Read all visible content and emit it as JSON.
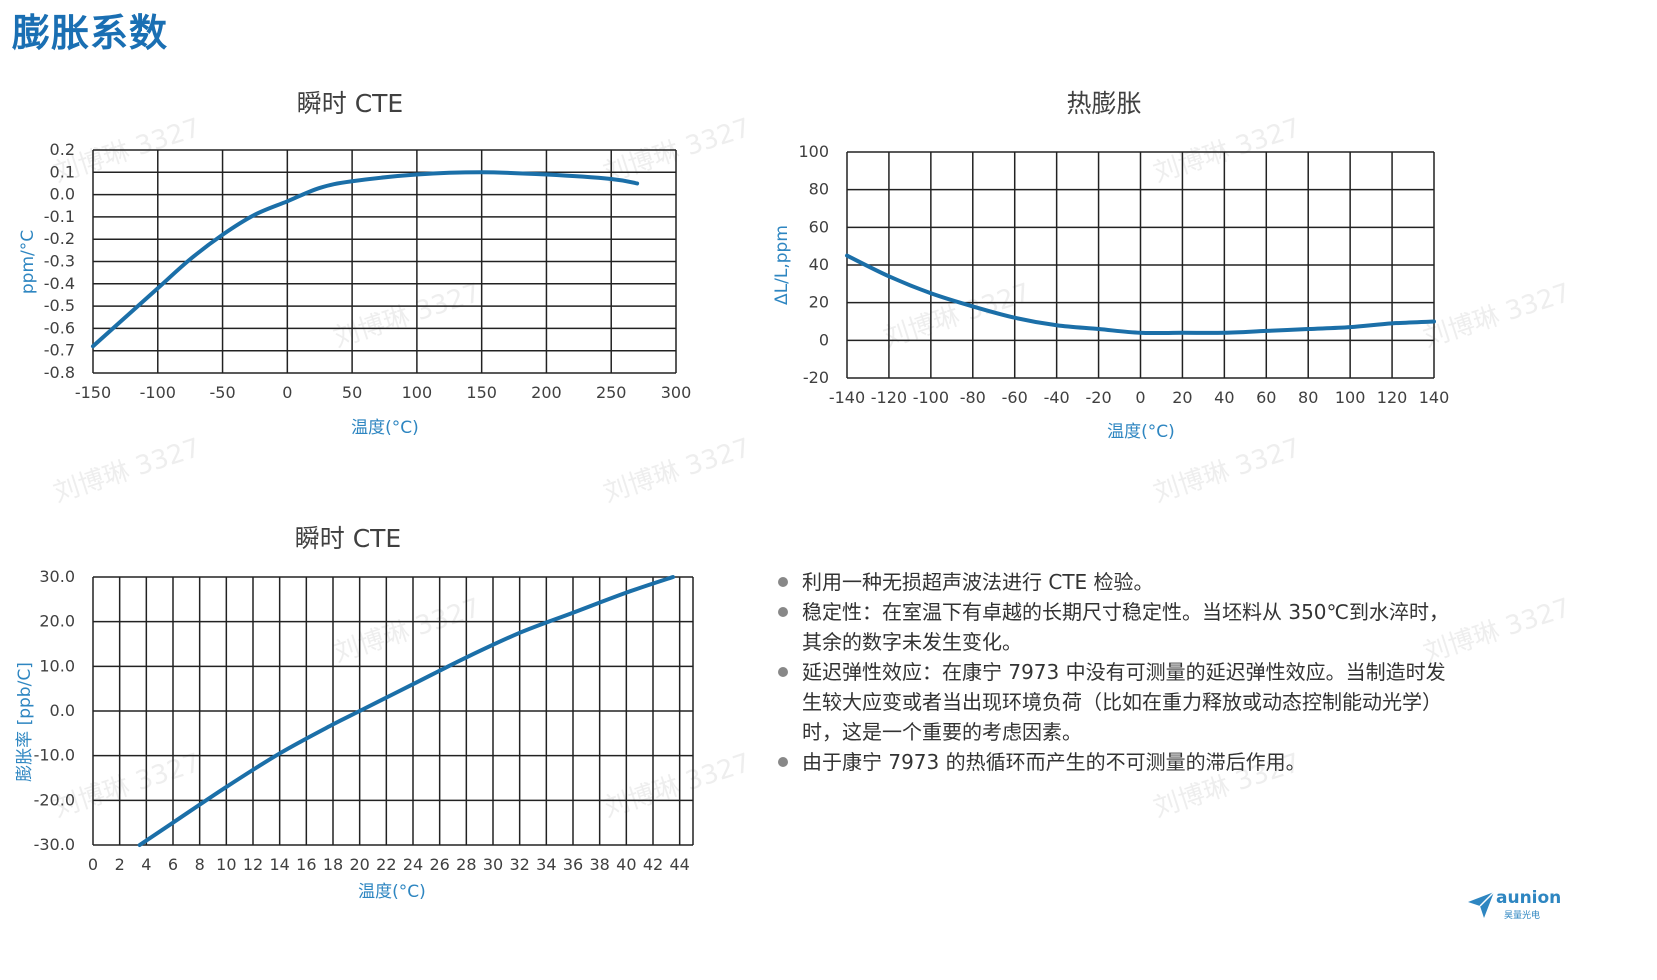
{
  "page_title": "膨胀系数",
  "watermark_text": "刘博琳 3327",
  "bullets": [
    "利用一种无损超声波法进行 CTE 检验。",
    "稳定性：在室温下有卓越的长期尺寸稳定性。当坯料从 350℃到水淬时，其余的数字未发生变化。",
    "延迟弹性效应：在康宁 7973 中没有可测量的延迟弹性效应。当制造时发生较大应变或者当出现环境负荷（比如在重力释放或动态控制能动光学）时，这是一个重要的考虑因素。",
    "由于康宁 7973 的热循环而产生的不可测量的滞后作用。"
  ],
  "logo": {
    "name": "aunion",
    "sub": "昊量光电"
  },
  "chart_data": [
    {
      "type": "line",
      "title": "瞬时 CTE",
      "xlabel": "温度(°C)",
      "ylabel": "ppm/°C",
      "xlim": [
        -150,
        300
      ],
      "ylim": [
        -0.8,
        0.2
      ],
      "x_ticks": [
        "-150",
        "-100",
        "-50",
        "0",
        "50",
        "100",
        "150",
        "200",
        "250",
        "300"
      ],
      "y_ticks": [
        "0.2",
        "0.1",
        "0.0",
        "-0.1",
        "-0.2",
        "-0.3",
        "-0.4",
        "-0.5",
        "-0.6",
        "-0.7",
        "-0.8"
      ],
      "grid": true,
      "color": "#1b6fa8",
      "series": [
        {
          "x": [
            -150,
            -125,
            -100,
            -75,
            -50,
            -25,
            0,
            25,
            50,
            100,
            150,
            200,
            250,
            270
          ],
          "y": [
            -0.68,
            -0.55,
            -0.42,
            -0.29,
            -0.18,
            -0.09,
            -0.03,
            0.03,
            0.06,
            0.09,
            0.1,
            0.09,
            0.07,
            0.05
          ]
        }
      ]
    },
    {
      "type": "line",
      "title": "热膨胀",
      "xlabel": "温度(°C)",
      "ylabel": "ΔL/L,ppm",
      "xlim": [
        -140,
        140
      ],
      "ylim": [
        -20,
        100
      ],
      "x_ticks": [
        "-140",
        "-120",
        "-100",
        "-80",
        "-60",
        "-40",
        "-20",
        "0",
        "20",
        "40",
        "60",
        "80",
        "100",
        "120",
        "140"
      ],
      "y_ticks": [
        "100",
        "80",
        "60",
        "40",
        "20",
        "0",
        "-20"
      ],
      "grid": true,
      "color": "#1b6fa8",
      "series": [
        {
          "x": [
            -140,
            -120,
            -100,
            -80,
            -60,
            -40,
            -20,
            0,
            20,
            40,
            60,
            80,
            100,
            120,
            140
          ],
          "y": [
            45,
            34,
            25,
            18,
            12,
            8,
            6,
            4,
            4,
            4,
            5,
            6,
            7,
            9,
            10
          ]
        }
      ]
    },
    {
      "type": "line",
      "title": "瞬时 CTE",
      "xlabel": "温度(°C)",
      "ylabel": "膨胀率 [ppb/C]",
      "xlim": [
        0,
        45
      ],
      "ylim": [
        -30,
        30
      ],
      "x_ticks": [
        "0",
        "2",
        "4",
        "6",
        "8",
        "10",
        "12",
        "14",
        "16",
        "18",
        "20",
        "22",
        "24",
        "26",
        "28",
        "30",
        "32",
        "34",
        "36",
        "38",
        "40",
        "42",
        "44"
      ],
      "y_ticks": [
        "30.0",
        "20.0",
        "10.0",
        "0.0",
        "-10.0",
        "-20.0",
        "-30.0"
      ],
      "grid": true,
      "color": "#3a78b8",
      "series": [
        {
          "x": [
            3.5,
            6,
            10,
            14,
            18,
            20,
            24,
            28,
            32,
            36,
            40,
            43.5
          ],
          "y": [
            -30,
            -25,
            -17,
            -9.5,
            -3,
            0,
            6,
            12,
            17.5,
            22,
            26.5,
            30
          ]
        }
      ]
    }
  ]
}
